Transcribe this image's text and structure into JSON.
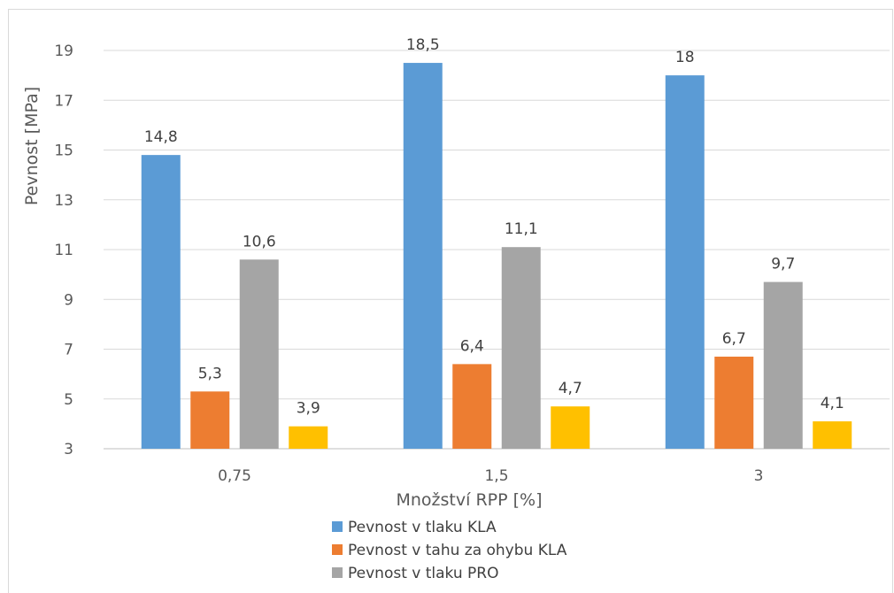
{
  "chart_data": {
    "type": "bar",
    "title": "",
    "xlabel": "Množství RPP [%]",
    "ylabel": "Pevnost [MPa]",
    "ylim": [
      3,
      19
    ],
    "yticks": [
      3,
      5,
      7,
      9,
      11,
      13,
      15,
      17,
      19
    ],
    "grid": true,
    "legend_position": "bottom",
    "categories": [
      "0,75",
      "1,5",
      "3"
    ],
    "series": [
      {
        "name": "Pevnost v tlaku KLA",
        "color": "#5b9bd5",
        "values": [
          14.8,
          18.5,
          18.0
        ],
        "labels": [
          "14,8",
          "18,5",
          "18"
        ]
      },
      {
        "name": "Pevnost v tahu za ohybu KLA",
        "color": "#ed7d31",
        "values": [
          5.3,
          6.4,
          6.7
        ],
        "labels": [
          "5,3",
          "6,4",
          "6,7"
        ]
      },
      {
        "name": "Pevnost v tlaku PRO",
        "color": "#a5a5a5",
        "values": [
          10.6,
          11.1,
          9.7
        ],
        "labels": [
          "10,6",
          "11,1",
          "9,7"
        ]
      },
      {
        "name": "",
        "color": "#ffc000",
        "values": [
          3.9,
          4.7,
          4.1
        ],
        "labels": [
          "3,9",
          "4,7",
          "4,1"
        ]
      }
    ]
  }
}
